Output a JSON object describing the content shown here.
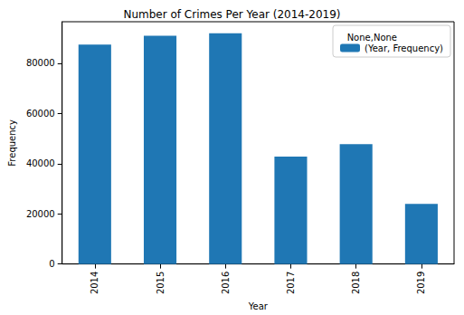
{
  "chart_data": {
    "type": "bar",
    "title": "Number of Crimes Per Year (2014-2019)",
    "x_label": "Year",
    "y_label": "Frequency",
    "categories": [
      "2014",
      "2015",
      "2016",
      "2017",
      "2018",
      "2019"
    ],
    "series": [
      {
        "name": "(Year, Frequency)",
        "color": "#1f77b4",
        "values": [
          87500,
          91000,
          92000,
          42800,
          47800,
          24000
        ]
      }
    ],
    "ylim": [
      0,
      96600
    ],
    "yticks": [
      0,
      20000,
      40000,
      60000,
      80000
    ],
    "grid": false,
    "legend": "upper right",
    "legend_title": "None,None"
  }
}
